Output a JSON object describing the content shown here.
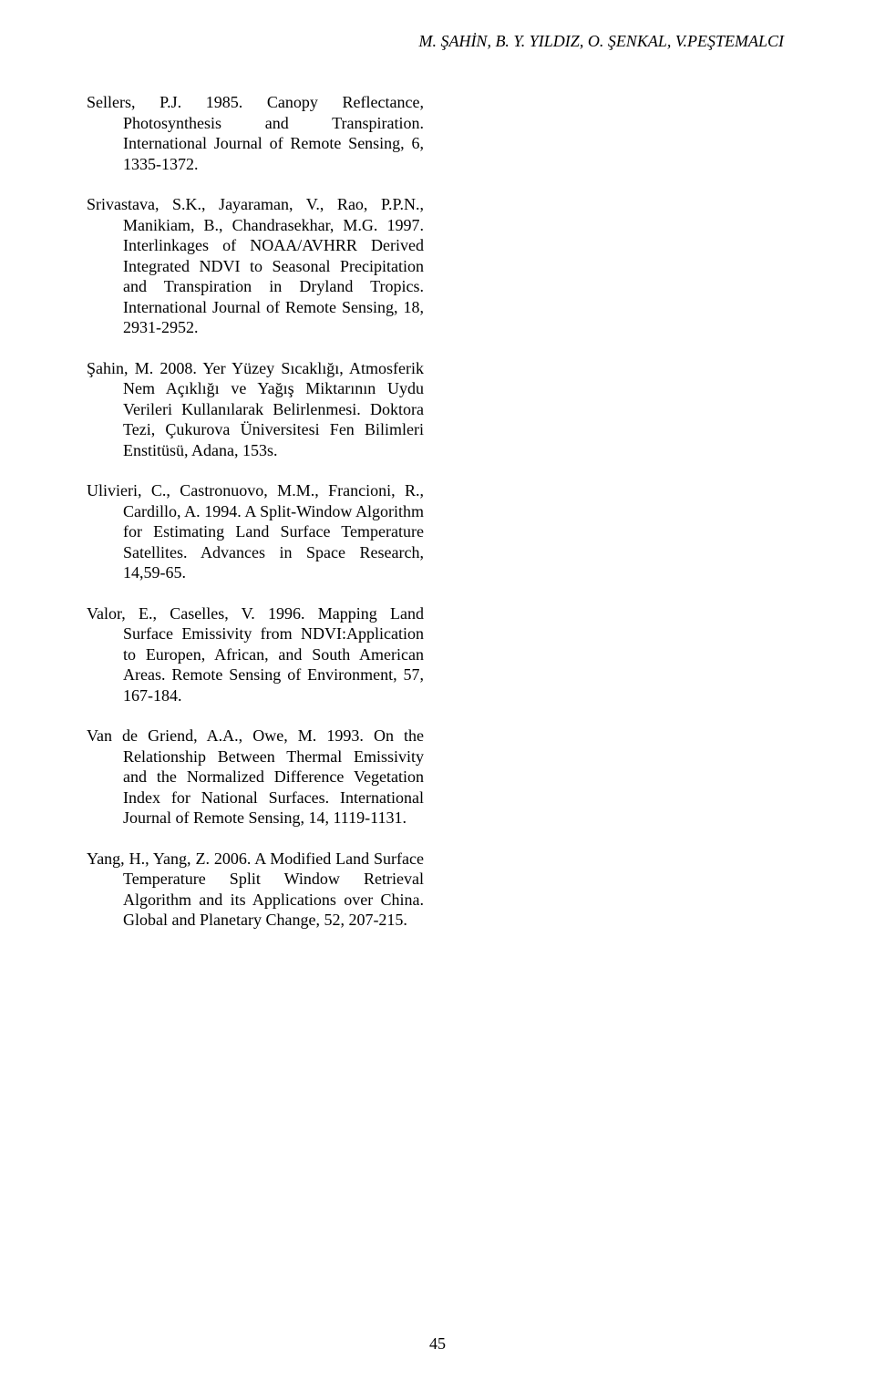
{
  "header": "M. ŞAHİN, B. Y. YILDIZ, O. ŞENKAL, V.PEŞTEMALCI",
  "references": [
    "Sellers, P.J. 1985. Canopy Reflectance, Photosynthesis and Transpiration. International Journal of Remote Sensing, 6, 1335-1372.",
    "Srivastava, S.K., Jayaraman, V., Rao, P.P.N., Manikiam, B., Chandrasekhar, M.G. 1997. Interlinkages of NOAA/AVHRR Derived Integrated NDVI to Seasonal Precipitation and Transpiration in Dryland Tropics. International Journal of Remote Sensing, 18, 2931-2952.",
    "Şahin, M. 2008. Yer Yüzey Sıcaklığı, Atmosferik Nem Açıklığı ve Yağış Miktarının Uydu Verileri Kullanılarak Belirlenmesi. Doktora Tezi, Çukurova Üniversitesi Fen Bilimleri Enstitüsü, Adana, 153s.",
    "Ulivieri, C., Castronuovo, M.M., Francioni, R., Cardillo, A. 1994. A Split-Window Algorithm for Estimating Land Surface Temperature Satellites. Advances in Space Research, 14,59-65.",
    "Valor, E., Caselles, V. 1996. Mapping Land Surface Emissivity from NDVI:Application to Europen, African, and South American Areas. Remote Sensing of Environment, 57, 167-184.",
    "Van de Griend, A.A., Owe, M. 1993. On the Relationship Between Thermal Emissivity and the Normalized Difference Vegetation Index for National Surfaces. International Journal of Remote Sensing, 14, 1119-1131.",
    "Yang, H., Yang, Z. 2006. A Modified Land Surface Temperature Split Window Retrieval Algorithm and its Applications over China. Global and Planetary Change, 52, 207-215."
  ],
  "pageNumber": "45"
}
